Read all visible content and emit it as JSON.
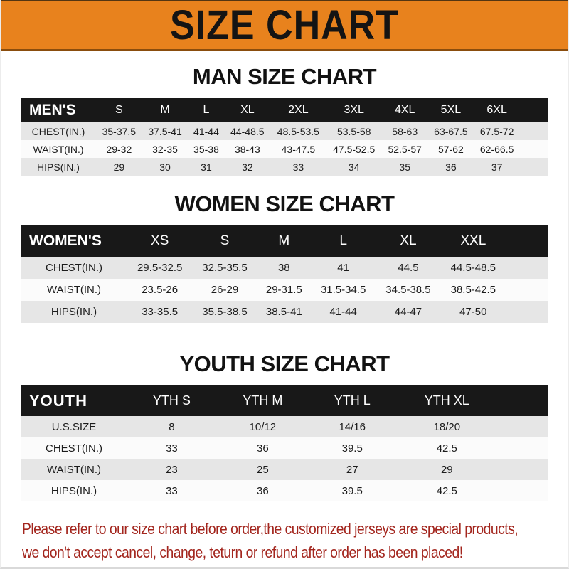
{
  "banner": {
    "title": "SIZE CHART"
  },
  "sections": [
    {
      "id": "men",
      "title": "MAN SIZE CHART",
      "header": {
        "label": "MEN'S",
        "columns": [
          "S",
          "M",
          "L",
          "XL",
          "2XL",
          "3XL",
          "4XL",
          "5XL",
          "6XL"
        ]
      },
      "rows": [
        {
          "label": "CHEST(IN.)",
          "values": [
            "35-37.5",
            "37.5-41",
            "41-44",
            "44-48.5",
            "48.5-53.5",
            "53.5-58",
            "58-63",
            "63-67.5",
            "67.5-72"
          ]
        },
        {
          "label": "WAIST(IN.)",
          "values": [
            "29-32",
            "32-35",
            "35-38",
            "38-43",
            "43-47.5",
            "47.5-52.5",
            "52.5-57",
            "57-62",
            "62-66.5"
          ]
        },
        {
          "label": "HIPS(IN.)",
          "values": [
            "29",
            "30",
            "31",
            "32",
            "33",
            "34",
            "35",
            "36",
            "37"
          ]
        }
      ]
    },
    {
      "id": "women",
      "title": "WOMEN SIZE CHART",
      "header": {
        "label": "WOMEN'S",
        "columns": [
          "XS",
          "S",
          "M",
          "L",
          "XL",
          "XXL"
        ]
      },
      "rows": [
        {
          "label": "CHEST(IN.)",
          "values": [
            "29.5-32.5",
            "32.5-35.5",
            "38",
            "41",
            "44.5",
            "44.5-48.5"
          ]
        },
        {
          "label": "WAIST(IN.)",
          "values": [
            "23.5-26",
            "26-29",
            "29-31.5",
            "31.5-34.5",
            "34.5-38.5",
            "38.5-42.5"
          ]
        },
        {
          "label": "HIPS(IN.)",
          "values": [
            "33-35.5",
            "35.5-38.5",
            "38.5-41",
            "41-44",
            "44-47",
            "47-50"
          ]
        }
      ]
    },
    {
      "id": "youth",
      "title": "YOUTH SIZE CHART",
      "header": {
        "label": "YOUTH",
        "columns": [
          "YTH S",
          "YTH M",
          "YTH L",
          "YTH XL"
        ]
      },
      "rows": [
        {
          "label": "U.S.SIZE",
          "values": [
            "8",
            "10/12",
            "14/16",
            "18/20"
          ]
        },
        {
          "label": "CHEST(IN.)",
          "values": [
            "33",
            "36",
            "39.5",
            "42.5"
          ]
        },
        {
          "label": "WAIST(IN.)",
          "values": [
            "23",
            "25",
            "27",
            "29"
          ]
        },
        {
          "label": "HIPS(IN.)",
          "values": [
            "33",
            "36",
            "39.5",
            "42.5"
          ]
        }
      ]
    }
  ],
  "footer": {
    "line1": "Please refer to our size chart before order,the customized jerseys are special products,",
    "line2": "we don't accept cancel, change, teturn or refund after order has been placed!"
  },
  "colors": {
    "banner_bg": "#E8821D",
    "banner_text": "#141414",
    "table_header_bar": "#181818",
    "row_stripe_gray": "#E6E6E6",
    "row_stripe_white": "#FBFBFB",
    "footer_text": "#A3261E"
  }
}
